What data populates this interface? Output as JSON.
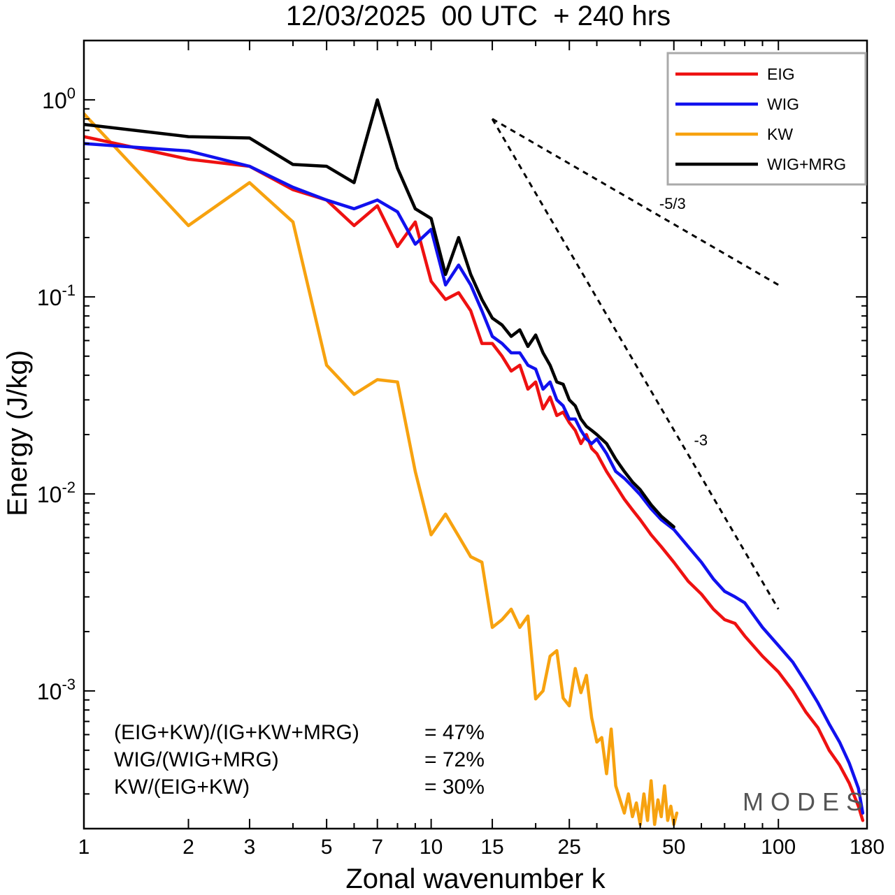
{
  "chart_data": {
    "type": "line",
    "title": "12/03/2025  00 UTC  + 240 hrs",
    "xlabel": "Zonal wavenumber k",
    "ylabel": "Energy (J/kg)",
    "x_scale": "log",
    "y_scale": "log",
    "xlim": [
      1,
      180
    ],
    "ylim": [
      0.0002,
      2
    ],
    "x_ticks": [
      "1",
      "2",
      "3",
      "5",
      "7",
      "10",
      "15",
      "25",
      "50",
      "100",
      "180"
    ],
    "x_tick_values": [
      1,
      2,
      3,
      5,
      7,
      10,
      15,
      25,
      50,
      100,
      180
    ],
    "y_ticks": [
      {
        "base": "10",
        "exp": "0",
        "value": 1
      },
      {
        "base": "10",
        "exp": "-1",
        "value": 0.1
      },
      {
        "base": "10",
        "exp": "-2",
        "value": 0.01
      },
      {
        "base": "10",
        "exp": "-3",
        "value": 0.001
      }
    ],
    "grid": false,
    "legend_position": "top-right",
    "series": [
      {
        "name": "EIG",
        "color": "#ee1111",
        "x": [
          1,
          2,
          3,
          4,
          5,
          6,
          7,
          8,
          9,
          10,
          11,
          12,
          13,
          14,
          15,
          16,
          17,
          18,
          19,
          20,
          21,
          22,
          23,
          24,
          25,
          26,
          27,
          28,
          29,
          30,
          32,
          34,
          36,
          38,
          40,
          43,
          46,
          50,
          55,
          60,
          65,
          70,
          75,
          80,
          90,
          100,
          110,
          120,
          130,
          140,
          150,
          160,
          170,
          175
        ],
        "values": [
          0.65,
          0.5,
          0.46,
          0.35,
          0.31,
          0.23,
          0.29,
          0.18,
          0.24,
          0.12,
          0.097,
          0.105,
          0.085,
          0.058,
          0.058,
          0.05,
          0.042,
          0.045,
          0.034,
          0.037,
          0.027,
          0.031,
          0.025,
          0.026,
          0.023,
          0.021,
          0.018,
          0.02,
          0.017,
          0.016,
          0.013,
          0.011,
          0.0094,
          0.0083,
          0.0074,
          0.0062,
          0.0054,
          0.0045,
          0.0036,
          0.0031,
          0.0026,
          0.0023,
          0.0022,
          0.0019,
          0.0015,
          0.00125,
          0.001,
          0.00078,
          0.00065,
          0.0005,
          0.00042,
          0.00034,
          0.00026,
          0.00022
        ]
      },
      {
        "name": "WIG",
        "color": "#1111ee",
        "x": [
          1,
          2,
          3,
          4,
          5,
          6,
          7,
          8,
          9,
          10,
          11,
          12,
          13,
          14,
          15,
          16,
          17,
          18,
          19,
          20,
          21,
          22,
          23,
          24,
          25,
          26,
          27,
          28,
          29,
          30,
          32,
          34,
          36,
          38,
          40,
          43,
          46,
          50,
          55,
          60,
          65,
          70,
          75,
          80,
          90,
          100,
          110,
          120,
          130,
          140,
          150,
          160,
          170,
          175
        ],
        "values": [
          0.6,
          0.55,
          0.46,
          0.36,
          0.31,
          0.28,
          0.31,
          0.27,
          0.185,
          0.22,
          0.115,
          0.145,
          0.115,
          0.085,
          0.063,
          0.058,
          0.052,
          0.052,
          0.045,
          0.043,
          0.034,
          0.037,
          0.03,
          0.028,
          0.024,
          0.024,
          0.021,
          0.019,
          0.018,
          0.019,
          0.016,
          0.013,
          0.012,
          0.0109,
          0.0099,
          0.0084,
          0.0074,
          0.0066,
          0.0054,
          0.0045,
          0.0037,
          0.0032,
          0.003,
          0.0028,
          0.0021,
          0.0017,
          0.0014,
          0.0011,
          0.00087,
          0.00068,
          0.00055,
          0.00043,
          0.00032,
          0.00024
        ]
      },
      {
        "name": "KW",
        "color": "#f7a20f",
        "x": [
          1,
          2,
          3,
          4,
          5,
          6,
          7,
          8,
          9,
          10,
          11,
          12,
          13,
          14,
          15,
          16,
          17,
          18,
          19,
          20,
          21,
          22,
          23,
          24,
          25,
          26,
          27,
          28,
          29,
          30,
          31,
          32,
          33,
          34,
          35,
          36,
          37,
          38,
          39,
          40,
          41,
          42,
          43,
          44,
          45,
          46,
          47,
          48,
          49,
          50,
          51
        ],
        "values": [
          0.85,
          0.23,
          0.38,
          0.24,
          0.045,
          0.032,
          0.038,
          0.037,
          0.013,
          0.0062,
          0.0079,
          0.0061,
          0.0048,
          0.0045,
          0.0021,
          0.0023,
          0.0026,
          0.0021,
          0.0024,
          0.00091,
          0.001,
          0.0015,
          0.0016,
          0.00092,
          0.00084,
          0.0013,
          0.00098,
          0.0012,
          0.00073,
          0.00055,
          0.00058,
          0.00038,
          0.00064,
          0.00033,
          0.00028,
          0.00024,
          0.0003,
          0.00023,
          0.00027,
          0.00021,
          0.0003,
          0.00022,
          0.00035,
          0.00021,
          0.00028,
          0.00023,
          0.00033,
          0.00022,
          0.00026,
          0.00021,
          0.00024
        ]
      },
      {
        "name": "WIG+MRG",
        "color": "#000000",
        "x": [
          1,
          2,
          3,
          4,
          5,
          6,
          7,
          8,
          9,
          10,
          11,
          12,
          13,
          14,
          15,
          16,
          17,
          18,
          19,
          20,
          21,
          22,
          23,
          24,
          25,
          26,
          27,
          28,
          29,
          30,
          32,
          34,
          36,
          38,
          40,
          43,
          46,
          50
        ],
        "values": [
          0.75,
          0.65,
          0.64,
          0.47,
          0.46,
          0.38,
          1.0,
          0.45,
          0.28,
          0.25,
          0.13,
          0.2,
          0.13,
          0.097,
          0.078,
          0.072,
          0.063,
          0.068,
          0.056,
          0.064,
          0.052,
          0.045,
          0.037,
          0.036,
          0.03,
          0.028,
          0.024,
          0.022,
          0.021,
          0.02,
          0.018,
          0.015,
          0.013,
          0.0115,
          0.0105,
          0.0088,
          0.0077,
          0.0068
        ]
      }
    ],
    "reference_lines": [
      {
        "label": "-5/3",
        "x": [
          15,
          100
        ],
        "values": [
          0.8,
          0.115
        ],
        "style": "dashed"
      },
      {
        "label": "-3",
        "x": [
          15,
          100
        ],
        "values": [
          0.8,
          0.0026
        ],
        "style": "dashed"
      }
    ],
    "annotations": {
      "ratios": [
        {
          "label": "(EIG+KW)/(IG+KW+MRG)",
          "value": "= 47%"
        },
        {
          "label": "WIG/(WIG+MRG)",
          "value": "= 72%"
        },
        {
          "label": "KW/(EIG+KW)",
          "value": "= 30%"
        }
      ],
      "watermark": "M O D E S",
      "copyright": "©"
    }
  }
}
